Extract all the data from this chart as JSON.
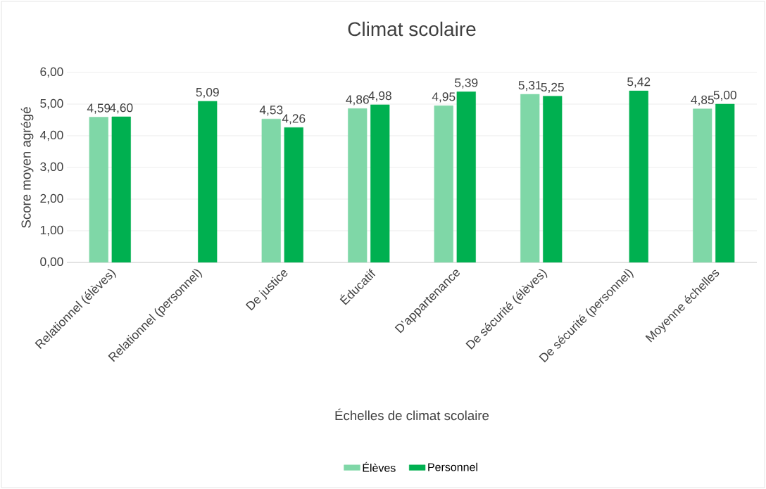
{
  "chart_data": {
    "type": "bar",
    "title": "Climat scolaire",
    "xlabel": "Échelles de climat scolaire",
    "ylabel": "Score moyen agrégé",
    "categories": [
      "Relationnel (élèves)",
      "Relationnel (personnel)",
      "De justice",
      "Éducatif",
      "D’appartenance",
      "De sécurité (élèves)",
      "De sécurité (personnel)",
      "Moyenne échelles"
    ],
    "series": [
      {
        "name": "Élèves",
        "color": "#7fd7a7",
        "values": [
          4.59,
          null,
          4.53,
          4.86,
          4.95,
          5.31,
          null,
          4.85
        ],
        "value_labels": [
          "4,59",
          null,
          "4,53",
          "4,86",
          "4,95",
          "5,31",
          null,
          "4,85"
        ]
      },
      {
        "name": "Personnel",
        "color": "#00b050",
        "values": [
          4.6,
          5.09,
          4.26,
          4.98,
          5.39,
          5.25,
          5.42,
          5.0
        ],
        "value_labels": [
          "4,60",
          "5,09",
          "4,26",
          "4,98",
          "5,39",
          "5,25",
          "5,42",
          "5,00"
        ]
      }
    ],
    "ylim": [
      0,
      6
    ],
    "yticks": [
      {
        "value": 0,
        "label": "0,00"
      },
      {
        "value": 1,
        "label": "1,00"
      },
      {
        "value": 2,
        "label": "2,00"
      },
      {
        "value": 3,
        "label": "3,00"
      },
      {
        "value": 4,
        "label": "4,00"
      },
      {
        "value": 5,
        "label": "5,00"
      },
      {
        "value": 6,
        "label": "6,00"
      }
    ],
    "grid": "y",
    "legend": "bottom"
  }
}
